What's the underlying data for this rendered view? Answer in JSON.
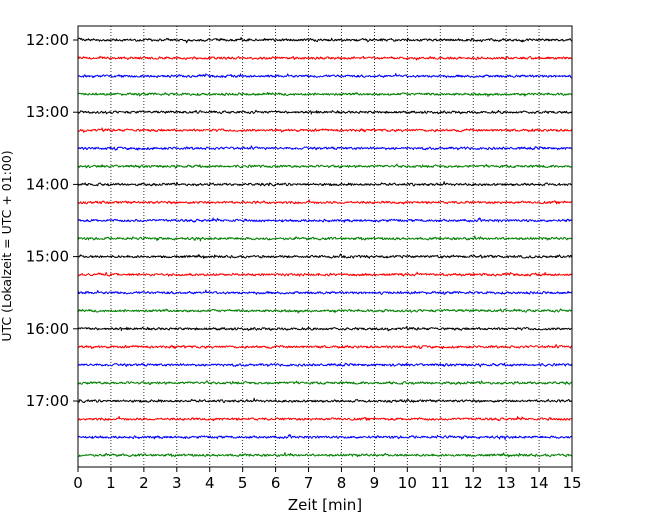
{
  "chart_data": {
    "type": "line",
    "title": "",
    "xlabel": "Zeit  [min]",
    "ylabel": "UTC (Lokalzeit = UTC + 01:00)",
    "xlim": [
      0,
      15
    ],
    "x_ticks": [
      "0",
      "1",
      "2",
      "3",
      "4",
      "5",
      "6",
      "7",
      "8",
      "9",
      "10",
      "11",
      "12",
      "13",
      "14",
      "15"
    ],
    "y_ticks": [
      "12:00",
      "13:00",
      "14:00",
      "15:00",
      "16:00",
      "17:00"
    ],
    "grid": "vertical dotted",
    "trace_minutes": 15,
    "trace_start": "12:00",
    "trace_end": "17:45",
    "trace_colors": [
      "#000000",
      "#ff0000",
      "#0000ff",
      "#008000"
    ],
    "trace_count": 24
  }
}
